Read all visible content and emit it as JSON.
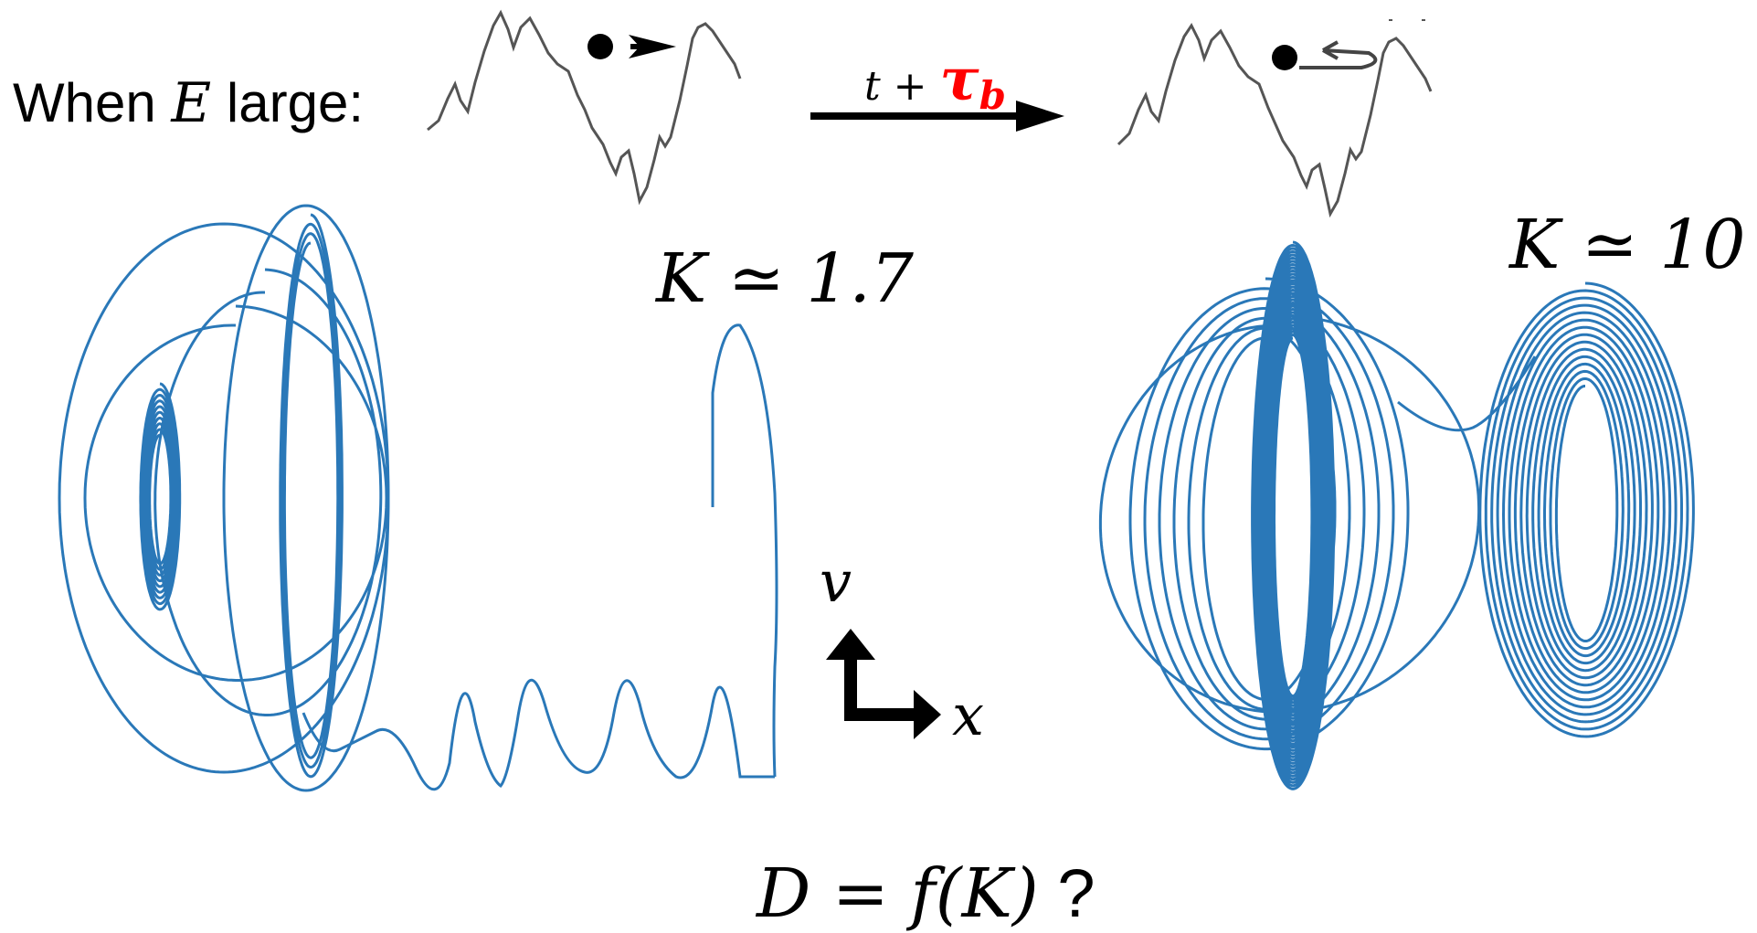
{
  "header": {
    "intro_prefix": "When ",
    "intro_var": "E",
    "intro_suffix": " large:",
    "arrow_label_prefix": "t + ",
    "arrow_label_symbol": "τ",
    "arrow_label_subscript": "b"
  },
  "panels": {
    "left": {
      "k_label": "K ≃ 1.7"
    },
    "right": {
      "k_label": "K ≃ 10"
    }
  },
  "axes": {
    "vertical": "v",
    "horizontal": "x"
  },
  "footer": {
    "equation": "D = f(K)",
    "mark": " ?"
  },
  "colors": {
    "trajectory": "#2a78b8",
    "highlight": "#ff0000",
    "ink": "#000000",
    "potential": "#555555"
  },
  "icons": [
    "particle-dot-icon",
    "forward-arrow-icon",
    "bounce-back-arrow-icon",
    "time-arrow-icon",
    "axes-icon"
  ]
}
